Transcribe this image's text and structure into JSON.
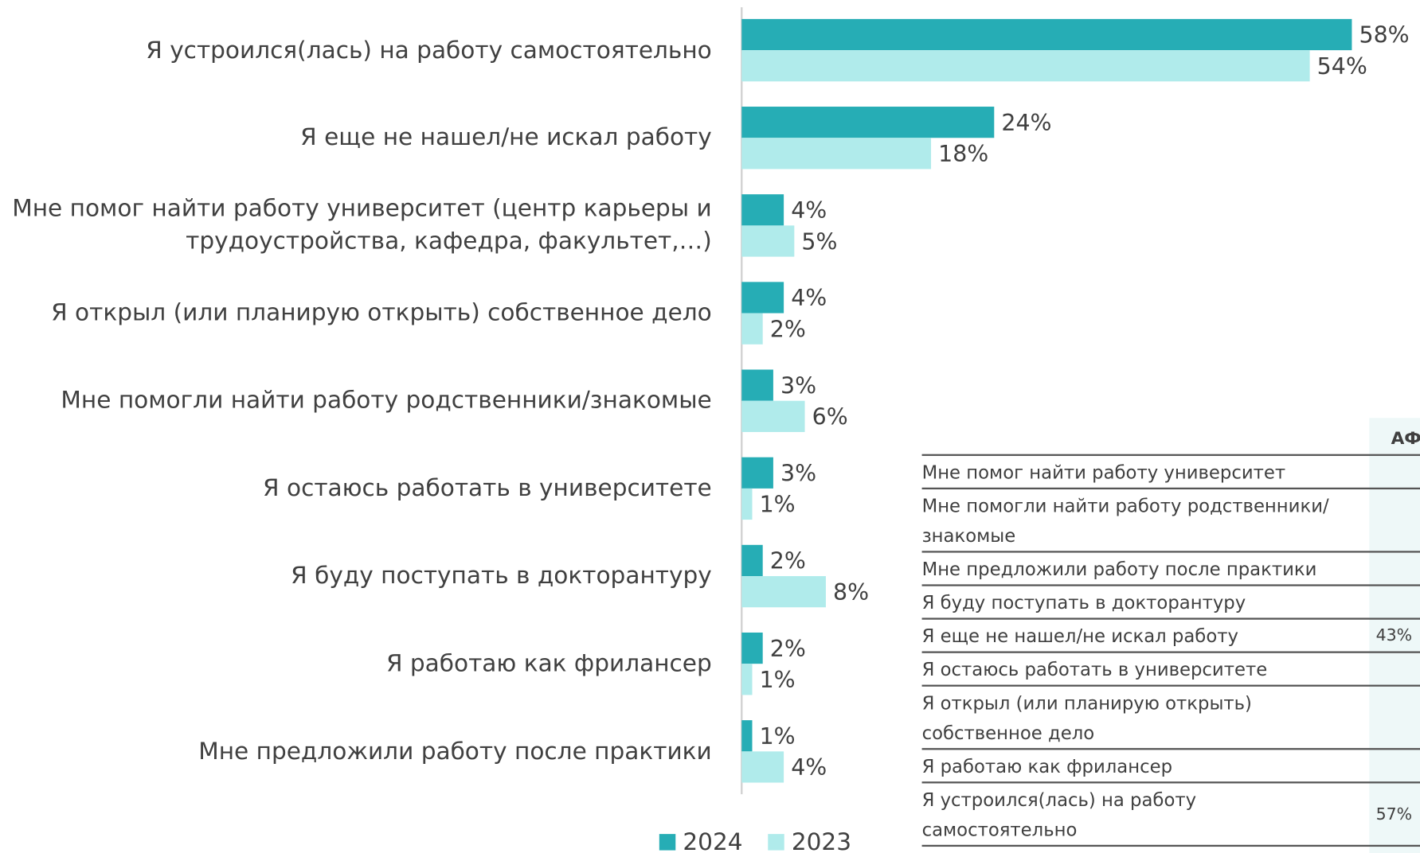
{
  "chart_data": {
    "type": "bar",
    "orientation": "horizontal",
    "categories": [
      "Я устроился(лась) на работу самостоятельно",
      "Я еще не нашел/не искал работу",
      "Мне помог найти работу университет (центр карьеры и трудоустройства, кафедра, факультет,…)",
      "Я открыл (или планирую открыть) собственное дело",
      "Мне помогли найти работу родственники/знакомые",
      "Я остаюсь работать в университете",
      "Я буду поступать в докторантуру",
      "Я работаю как фрилансер",
      "Мне предложили работу после практики"
    ],
    "series": [
      {
        "name": "2024",
        "color": "#26adb5",
        "values": [
          58,
          24,
          4,
          4,
          3,
          3,
          2,
          2,
          1
        ],
        "value_labels": [
          "58%",
          "24%",
          "4%",
          "4%",
          "3%",
          "3%",
          "2%",
          "2%",
          "1%"
        ]
      },
      {
        "name": "2023",
        "color": "#b0ebeb",
        "values": [
          54,
          18,
          5,
          2,
          6,
          1,
          8,
          1,
          4
        ],
        "value_labels": [
          "54%",
          "18%",
          "5%",
          "2%",
          "6%",
          "1%",
          "8%",
          "1%",
          "4%"
        ]
      }
    ],
    "xlim": [
      0,
      60
    ],
    "legend": "bottom"
  },
  "table": {
    "header": "АФ",
    "rows": [
      {
        "label": "Мне помог найти работу университет"
      },
      {
        "label": "Мне помогли найти работу родственники/знакомые"
      },
      {
        "label": "Мне предложили работу после практики"
      },
      {
        "label": "Я буду поступать в докторантуру"
      },
      {
        "label": "Я еще не нашел/не искал работу",
        "value": "43%"
      },
      {
        "label": "Я остаюсь работать в университете"
      },
      {
        "label": "Я открыл (или планирую открыть) собственное дело"
      },
      {
        "label": "Я работаю как фрилансер"
      },
      {
        "label": "Я устроился(лась) на работу самостоятельно",
        "value": "57%"
      }
    ]
  }
}
